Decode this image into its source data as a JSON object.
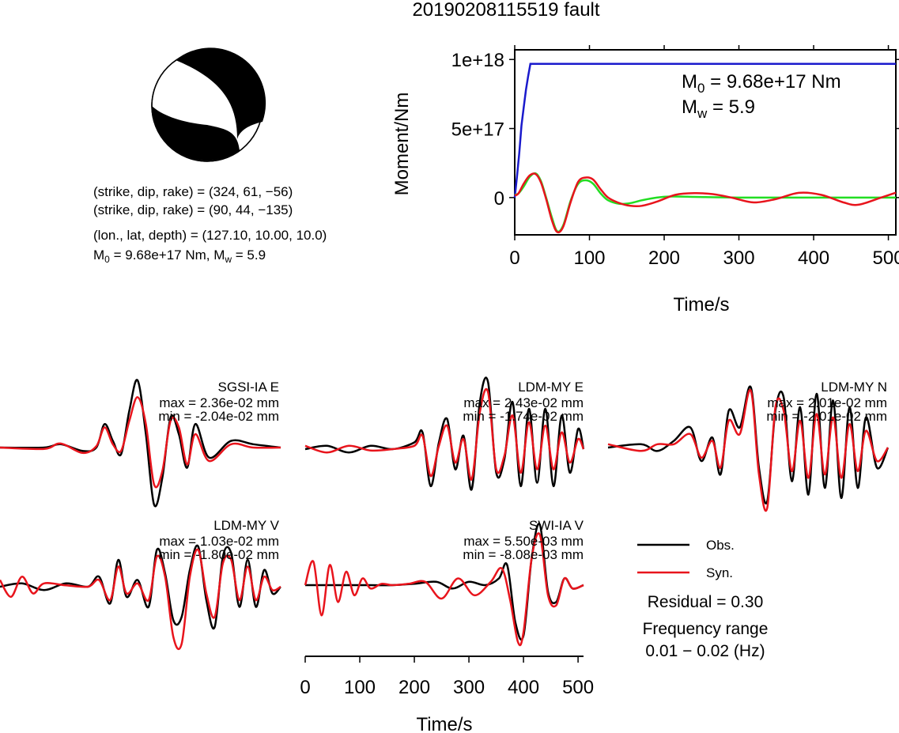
{
  "title": "20190208115519 fault",
  "focal_info": {
    "line1": "(strike, dip, rake) = (324, 61, −56)",
    "line2": "(strike, dip, rake) = (90, 44, −135)",
    "line3": "(lon., lat, depth) = (127.10, 10.00, 10.0)",
    "m0_prefix": "M",
    "m0_sub": "0",
    "m0_rest": " = 9.68e+17 Nm, M",
    "mw_sub": "w",
    "mw_rest": " = 5.9"
  },
  "stf_text": {
    "m0_prefix": "M",
    "m0_sub": "0",
    "m0_rest": " = 9.68e+17 Nm",
    "mw_prefix": "M",
    "mw_sub": "w",
    "mw_rest": " = 5.9"
  },
  "legend": {
    "obs": "Obs.",
    "syn": "Syn.",
    "residual": "Residual = 0.30",
    "freq_label": "Frequency range",
    "freq_value": "0.01 − 0.02 (Hz)"
  },
  "colors": {
    "observed": "#000000",
    "synthetic": "#e8141c",
    "moment": "#1a1acc",
    "moment_rate_green": "#22dd22",
    "moment_rate_red": "#e8141c"
  },
  "chart_data": [
    {
      "type": "line",
      "id": "moment",
      "xlabel": "Time/s",
      "ylabel": "Moment/Nm",
      "xlim": [
        0,
        510
      ],
      "ylim": [
        -2.7e+17,
        1.07e+18
      ],
      "xticks": [
        0,
        100,
        200,
        300,
        400,
        500
      ],
      "xtick_labels": [
        "0",
        "100",
        "200",
        "300",
        "400",
        "500"
      ],
      "yticks": [
        0,
        5e+17,
        1e+18
      ],
      "ytick_labels": [
        "0",
        "5e+17",
        "1e+18"
      ],
      "series": [
        {
          "role": "cumulative moment",
          "x": [
            0,
            3,
            6,
            9,
            12,
            15,
            18,
            21,
            24,
            30,
            100,
            200,
            300,
            400,
            510
          ],
          "y": [
            0,
            1.5e+17,
            3.2e+17,
            5.2e+17,
            6.5e+17,
            7.8e+17,
            8.8e+17,
            9.68e+17,
            9.68e+17,
            9.68e+17,
            9.68e+17,
            9.68e+17,
            9.68e+17,
            9.68e+17,
            9.68e+17
          ]
        },
        {
          "role": "moment rate (green)",
          "x": [
            0,
            5,
            12,
            20,
            28,
            35,
            42,
            50,
            57,
            65,
            75,
            85,
            95,
            105,
            115,
            125,
            140,
            155,
            170,
            190,
            210,
            240,
            270,
            300,
            350,
            400,
            450,
            510
          ],
          "y": [
            2e+16,
            3e+16,
            8e+16,
            1.5e+17,
            1.75e+17,
            1.2e+17,
            0,
            -1.5e+17,
            -2.45e+17,
            -2e+17,
            -2e+16,
            1e+17,
            1.25e+17,
            1e+17,
            3e+16,
            -2e+16,
            -4.5e+16,
            -4e+16,
            -2e+16,
            0,
            8000000000000000.0,
            5000000000000000.0,
            2000000000000000.0,
            0,
            0,
            0,
            0,
            0
          ]
        },
        {
          "role": "moment rate (red)",
          "x": [
            0,
            5,
            12,
            20,
            28,
            35,
            42,
            50,
            57,
            65,
            75,
            85,
            95,
            105,
            115,
            125,
            140,
            155,
            170,
            190,
            215,
            240,
            265,
            290,
            320,
            350,
            380,
            410,
            440,
            460,
            490,
            510
          ],
          "y": [
            1.5e+16,
            3e+16,
            1e+17,
            1.6e+17,
            1.7e+17,
            1.1e+17,
            -1e+16,
            -1.7e+17,
            -2.5e+17,
            -2.1e+17,
            -3e+16,
            1.15e+17,
            1.45e+17,
            1.3e+17,
            6e+16,
            0,
            -4e+16,
            -6e+16,
            -6e+16,
            -3e+16,
            2e+16,
            3.2e+16,
            2.5e+16,
            0,
            -3.5e+16,
            -1e+16,
            3.4e+16,
            2e+16,
            -3.5e+16,
            -5.2e+16,
            0,
            3.5e+16
          ]
        }
      ]
    },
    {
      "type": "line",
      "id": "waveforms",
      "xlabel": "Time/s",
      "xlim": [
        0,
        510
      ],
      "xticks": [
        0,
        100,
        200,
        300,
        400,
        500
      ],
      "xtick_labels": [
        "0",
        "100",
        "200",
        "300",
        "400",
        "500"
      ],
      "panels": [
        {
          "station": "SGSI-IA E",
          "max_label": "max = 2.36e-02 mm",
          "min_label": "min = -2.04e-02 mm",
          "obs": {
            "x": [
              0,
              80,
              110,
              150,
              175,
              190,
              205,
              220,
              235,
              250,
              265,
              280,
              295,
              310,
              325,
              340,
              355,
              380,
              420,
              460,
              510
            ],
            "y": [
              0,
              0,
              0.05,
              -0.05,
              0,
              0.35,
              0.1,
              -0.1,
              0.55,
              1.0,
              0.2,
              -0.85,
              -0.45,
              0.45,
              0.2,
              -0.3,
              0.35,
              -0.15,
              0.1,
              0.05,
              0
            ]
          },
          "syn": {
            "x": [
              0,
              80,
              110,
              150,
              175,
              190,
              205,
              220,
              235,
              250,
              265,
              280,
              295,
              310,
              325,
              340,
              355,
              380,
              420,
              460,
              510
            ],
            "y": [
              0,
              -0.02,
              0.06,
              -0.08,
              0.02,
              0.3,
              0.05,
              -0.05,
              0.4,
              0.75,
              0.35,
              -0.55,
              -0.35,
              0.4,
              0.3,
              -0.25,
              0.2,
              -0.2,
              0.05,
              0.0,
              0
            ]
          }
        },
        {
          "station": "LDM-MY E",
          "max_label": "max = 2.43e-02 mm",
          "min_label": "min = -1.74e-02 mm",
          "obs": {
            "x": [
              0,
              40,
              80,
              120,
              160,
              200,
              215,
              230,
              245,
              260,
              275,
              290,
              305,
              320,
              335,
              350,
              365,
              380,
              395,
              410,
              425,
              440,
              455,
              470,
              485,
              500,
              510
            ],
            "y": [
              0,
              0.05,
              -0.05,
              0.05,
              0,
              0.1,
              0.25,
              -0.55,
              0.1,
              0.45,
              -0.3,
              0.2,
              -0.6,
              0.7,
              1.0,
              -0.35,
              -0.15,
              0.7,
              -0.55,
              0.6,
              -0.5,
              0.6,
              -0.55,
              0.5,
              -0.35,
              0.3,
              0
            ]
          },
          "syn": {
            "x": [
              0,
              40,
              80,
              120,
              160,
              200,
              215,
              230,
              245,
              260,
              275,
              290,
              305,
              320,
              335,
              350,
              365,
              380,
              395,
              410,
              425,
              440,
              455,
              470,
              485,
              500,
              510
            ],
            "y": [
              0.05,
              -0.05,
              0.05,
              -0.02,
              0,
              0.05,
              0.2,
              -0.4,
              0.05,
              0.35,
              -0.2,
              0.15,
              -0.45,
              0.55,
              0.85,
              -0.3,
              -0.1,
              0.5,
              -0.35,
              0.4,
              -0.3,
              0.35,
              -0.3,
              0.25,
              -0.2,
              0.15,
              0
            ]
          }
        },
        {
          "station": "LDM-MY N",
          "max_label": "max = 2.01e-02 mm",
          "min_label": "min = -2.01e-02 mm",
          "obs": {
            "x": [
              0,
              60,
              90,
              120,
              150,
              170,
              190,
              205,
              220,
              240,
              260,
              275,
              290,
              305,
              320,
              335,
              350,
              365,
              380,
              395,
              410,
              425,
              440,
              455,
              470,
              490,
              510
            ],
            "y": [
              0,
              0.05,
              -0.05,
              0.1,
              0.3,
              -0.2,
              0.15,
              -0.4,
              0.55,
              0.3,
              0.9,
              -0.3,
              -0.8,
              0.55,
              0.75,
              -0.5,
              0.6,
              -0.7,
              0.8,
              -0.6,
              0.7,
              -0.75,
              0.6,
              -0.6,
              0.45,
              -0.3,
              0
            ]
          },
          "syn": {
            "x": [
              0,
              60,
              90,
              120,
              150,
              170,
              190,
              205,
              220,
              240,
              260,
              275,
              290,
              305,
              320,
              335,
              350,
              365,
              380,
              395,
              410,
              425,
              440,
              455,
              470,
              490,
              510
            ],
            "y": [
              0.05,
              -0.05,
              0.05,
              0.05,
              0.2,
              -0.15,
              0.1,
              -0.3,
              0.4,
              0.2,
              0.85,
              -0.4,
              -0.9,
              0.6,
              0.55,
              -0.35,
              0.4,
              -0.45,
              0.5,
              -0.4,
              0.45,
              -0.45,
              0.35,
              -0.35,
              0.25,
              -0.2,
              0
            ]
          }
        },
        {
          "station": "LDM-MY V",
          "max_label": "max = 1.03e-02 mm",
          "min_label": "min = -1.80e-02 mm",
          "obs": {
            "x": [
              0,
              40,
              80,
              120,
              160,
              180,
              200,
              215,
              230,
              250,
              270,
              285,
              300,
              315,
              330,
              345,
              360,
              375,
              390,
              405,
              420,
              435,
              450,
              465,
              480,
              495,
              510
            ],
            "y": [
              0,
              0.05,
              -0.05,
              0.05,
              0,
              0.15,
              -0.25,
              0.4,
              -0.15,
              0.1,
              -0.3,
              0.55,
              0.2,
              -0.5,
              -0.45,
              0.25,
              0.6,
              -0.2,
              -0.6,
              0.45,
              0.5,
              -0.3,
              0.4,
              -0.3,
              0.25,
              -0.1,
              0
            ]
          },
          "syn": {
            "x": [
              0,
              20,
              40,
              60,
              80,
              120,
              160,
              180,
              200,
              215,
              230,
              250,
              270,
              285,
              300,
              315,
              330,
              345,
              360,
              375,
              390,
              405,
              420,
              435,
              450,
              465,
              480,
              495,
              510
            ],
            "y": [
              0.1,
              -0.15,
              0.15,
              -0.1,
              0.05,
              0.02,
              0,
              0.1,
              -0.2,
              0.3,
              -0.1,
              0.05,
              -0.2,
              0.45,
              0.15,
              -0.75,
              -0.85,
              0.15,
              0.55,
              -0.1,
              -0.45,
              0.35,
              0.4,
              -0.2,
              0.3,
              -0.2,
              0.15,
              -0.05,
              0
            ]
          }
        },
        {
          "station": "SWI-IA V",
          "max_label": "max = 5.50e-03 mm",
          "min_label": "min = -8.08e-03 mm",
          "obs": {
            "x": [
              0,
              40,
              80,
              120,
              160,
              200,
              240,
              270,
              300,
              330,
              355,
              370,
              385,
              400,
              415,
              430,
              445,
              460,
              475,
              490,
              510
            ],
            "y": [
              0,
              0,
              0,
              0,
              0,
              0.02,
              0.05,
              -0.05,
              0.05,
              0.0,
              0.1,
              0.3,
              -0.55,
              -0.75,
              0.4,
              0.9,
              -0.1,
              -0.25,
              0.1,
              -0.05,
              0
            ]
          },
          "syn": {
            "x": [
              0,
              15,
              30,
              45,
              60,
              75,
              90,
              105,
              120,
              140,
              160,
              190,
              220,
              250,
              280,
              310,
              340,
              360,
              375,
              390,
              400,
              415,
              430,
              445,
              460,
              475,
              490,
              510
            ],
            "y": [
              0,
              0.35,
              -0.45,
              0.3,
              -0.25,
              0.2,
              -0.15,
              0.1,
              -0.05,
              0.02,
              0,
              0.02,
              0.05,
              -0.2,
              0.1,
              -0.15,
              0.05,
              0.25,
              -0.2,
              -0.85,
              -0.7,
              0.4,
              0.75,
              -0.15,
              -0.3,
              0.1,
              -0.05,
              0
            ]
          }
        }
      ]
    }
  ]
}
